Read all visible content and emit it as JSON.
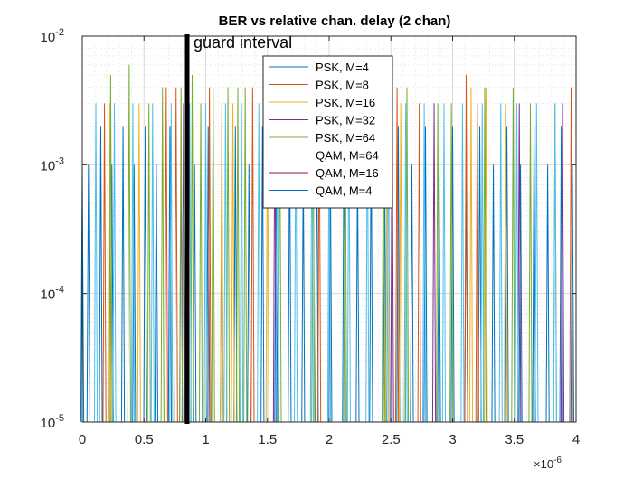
{
  "chart_data": {
    "type": "line",
    "title": "BER vs relative chan. delay (2 chan)",
    "xlabel": "",
    "ylabel": "",
    "x_exponent_label": "×10",
    "x_exponent_power": "-6",
    "xlim": [
      0,
      4e-06
    ],
    "ylim": [
      1e-05,
      0.01
    ],
    "yscale": "log",
    "grid": true,
    "minor_grid": true,
    "x_ticks": [
      0,
      5e-07,
      1e-06,
      1.5e-06,
      2e-06,
      2.5e-06,
      3e-06,
      3.5e-06,
      4e-06
    ],
    "x_tick_labels": [
      "0",
      "0.5",
      "1",
      "1.5",
      "2",
      "2.5",
      "3",
      "3.5",
      "4"
    ],
    "y_ticks": [
      1e-05,
      0.0001,
      0.001,
      0.01
    ],
    "y_tick_labels": [
      {
        "base": "10",
        "exp": "-5"
      },
      {
        "base": "10",
        "exp": "-4"
      },
      {
        "base": "10",
        "exp": "-3"
      },
      {
        "base": "10",
        "exp": "-2"
      }
    ],
    "legend_position": "top-right",
    "annotation": {
      "text": "guard interval",
      "x": 8.5e-07
    },
    "series": [
      {
        "name": "PSK, M=4",
        "color": "#0072BD",
        "x": [
          0,
          5e-08,
          1.5e-07,
          2.4e-07,
          3.3e-07,
          4.2e-07,
          5.1e-07,
          6e-07,
          7.1e-07,
          8e-07,
          9.1e-07,
          1.02e-06,
          1.13e-06,
          1.24e-06,
          1.35e-06,
          1.46e-06,
          1.57e-06,
          1.68e-06,
          1.79e-06,
          1.9e-06,
          2.01e-06,
          2.12e-06,
          2.23e-06,
          2.34e-06,
          2.45e-06,
          2.56e-06,
          2.67e-06,
          2.78e-06,
          2.89e-06,
          3e-06,
          3.11e-06,
          3.22e-06,
          3.33e-06,
          3.44e-06,
          3.55e-06,
          3.66e-06,
          3.77e-06,
          3.88e-06,
          3.97e-06
        ],
        "y": [
          0.001,
          0.001,
          0.002,
          0.001,
          0.002,
          0.001,
          0.002,
          0.001,
          0.002,
          0.001,
          0.001,
          0.002,
          0.001,
          0.002,
          0.001,
          0.002,
          0.001,
          0.002,
          0.001,
          0.002,
          0.001,
          0.002,
          0.001,
          0.002,
          0.001,
          0.002,
          0.001,
          0.002,
          0.001,
          0.002,
          0.001,
          0.002,
          0.001,
          0.002,
          0.001,
          0.002,
          0.001,
          0.002,
          0.001
        ]
      },
      {
        "name": "PSK, M=8",
        "color": "#D95319",
        "x": [
          1.8e-07,
          6.8e-07,
          7.6e-07,
          1.03e-06,
          1.38e-06,
          1.92e-06,
          2.55e-06,
          2.73e-06,
          3.11e-06,
          3.2e-06,
          3.96e-06
        ],
        "y": [
          0.003,
          0.004,
          0.004,
          0.004,
          0.004,
          0.003,
          0.004,
          0.003,
          0.005,
          0.003,
          0.004
        ]
      },
      {
        "name": "PSK, M=16",
        "color": "#EDB120",
        "x": [
          2.2e-07,
          4.6e-07,
          1.13e-06,
          1.22e-06,
          1.5e-06,
          2.47e-06,
          2.58e-06,
          3.15e-06,
          3.27e-06,
          3.43e-06
        ],
        "y": [
          0.003,
          0.003,
          0.003,
          0.003,
          0.003,
          0.003,
          0.003,
          0.004,
          0.004,
          0.003
        ]
      },
      {
        "name": "PSK, M=32",
        "color": "#7E2F8E",
        "x": [
          8.2e-07,
          1.56e-06,
          2.51e-06,
          2.85e-06,
          3.54e-06,
          3.89e-06
        ],
        "y": [
          0.003,
          0.003,
          0.003,
          0.003,
          0.003,
          0.003
        ]
      },
      {
        "name": "PSK, M=64",
        "color": "#77AC30",
        "x": [
          2.3e-07,
          3.8e-07,
          5.4e-07,
          6.5e-07,
          8e-07,
          8.9e-07,
          9.6e-07,
          1.06e-06,
          1.18e-06,
          1.26e-06,
          1.32e-06,
          1.6e-06,
          1.87e-06,
          2.13e-06,
          2.44e-06,
          2.63e-06,
          2.88e-06,
          2.99e-06,
          3.26e-06,
          3.49e-06,
          3.63e-06,
          3.83e-06
        ],
        "y": [
          0.005,
          0.006,
          0.003,
          0.004,
          0.004,
          0.005,
          0.003,
          0.004,
          0.004,
          0.004,
          0.004,
          0.003,
          0.004,
          0.004,
          0.004,
          0.004,
          0.003,
          0.003,
          0.004,
          0.004,
          0.003,
          0.003
        ]
      },
      {
        "name": "QAM, M=64",
        "color": "#4DBEEE",
        "x": [
          1.1e-07,
          2.6e-07,
          4.1e-07,
          5.7e-07,
          7.2e-07,
          8.7e-07,
          1e-06,
          1.16e-06,
          1.29e-06,
          1.43e-06,
          1.58e-06,
          1.73e-06,
          1.86e-06,
          2e-06,
          2.16e-06,
          2.31e-06,
          2.48e-06,
          2.62e-06,
          2.77e-06,
          2.93e-06,
          3.08e-06,
          3.24e-06,
          3.39e-06,
          3.52e-06,
          3.68e-06,
          3.83e-06
        ],
        "y": [
          0.003,
          0.003,
          0.003,
          0.003,
          0.003,
          0.003,
          0.003,
          0.003,
          0.003,
          0.003,
          0.003,
          0.003,
          0.003,
          0.003,
          0.003,
          0.003,
          0.003,
          0.003,
          0.003,
          0.003,
          0.003,
          0.003,
          0.003,
          0.003,
          0.003,
          0.003
        ]
      },
      {
        "name": "QAM, M=16",
        "color": "#A2142F",
        "x": [],
        "y": []
      },
      {
        "name": "QAM, M=4",
        "color": "#0072BD",
        "x": [],
        "y": []
      }
    ]
  }
}
